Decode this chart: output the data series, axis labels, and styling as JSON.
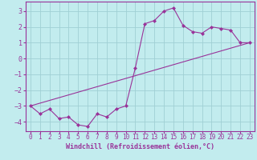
{
  "title": "",
  "xlabel": "Windchill (Refroidissement éolien,°C)",
  "ylabel": "",
  "bg_color": "#c2ecee",
  "grid_color": "#a0d0d4",
  "line_color": "#993399",
  "marker_color": "#993399",
  "xlim": [
    -0.5,
    23.5
  ],
  "ylim": [
    -4.6,
    3.6
  ],
  "xticks": [
    0,
    1,
    2,
    3,
    4,
    5,
    6,
    7,
    8,
    9,
    10,
    11,
    12,
    13,
    14,
    15,
    16,
    17,
    18,
    19,
    20,
    21,
    22,
    23
  ],
  "yticks": [
    -4,
    -3,
    -2,
    -1,
    0,
    1,
    2,
    3
  ],
  "curve1_x": [
    0,
    1,
    2,
    3,
    4,
    5,
    6,
    7,
    8,
    9,
    10,
    11,
    12,
    13,
    14,
    15,
    16,
    17,
    18,
    19,
    20,
    21,
    22,
    23
  ],
  "curve1_y": [
    -3.0,
    -3.5,
    -3.2,
    -3.8,
    -3.7,
    -4.2,
    -4.3,
    -3.5,
    -3.7,
    -3.2,
    -3.0,
    -0.6,
    2.2,
    2.4,
    3.0,
    3.2,
    2.1,
    1.7,
    1.6,
    2.0,
    1.9,
    1.8,
    1.0,
    1.0
  ],
  "curve2_x": [
    0,
    23
  ],
  "curve2_y": [
    -3.0,
    1.0
  ],
  "fontsize_xlabel": 6,
  "fontsize_yticks": 6,
  "fontsize_xticks": 5.5
}
